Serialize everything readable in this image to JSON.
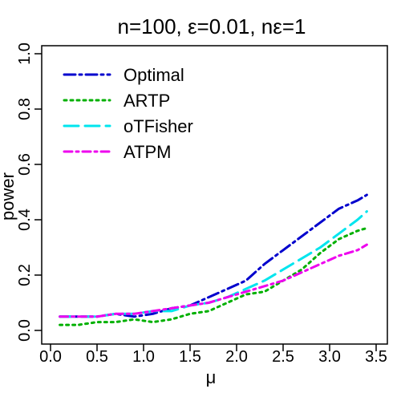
{
  "chart_data": {
    "type": "line",
    "title": "n=100, ε=0.01, nε=1",
    "xlabel": "μ",
    "ylabel": "power",
    "xlim": [
      0,
      3.5
    ],
    "ylim": [
      0,
      1.0
    ],
    "xticks": [
      "0.0",
      "0.5",
      "1.0",
      "1.5",
      "2.0",
      "2.5",
      "3.0",
      "3.5"
    ],
    "yticks": [
      "0.0",
      "0.2",
      "0.4",
      "0.6",
      "0.8",
      "1.0"
    ],
    "grid": false,
    "legend_position": "top-left",
    "series": [
      {
        "name": "Optimal",
        "color": "#0000CD",
        "dash": "dot-dash",
        "x": [
          0.1,
          0.3,
          0.5,
          0.7,
          0.9,
          1.1,
          1.3,
          1.5,
          1.7,
          1.9,
          2.1,
          2.3,
          2.5,
          2.7,
          2.9,
          3.1,
          3.3,
          3.4
        ],
        "y": [
          0.05,
          0.05,
          0.05,
          0.06,
          0.05,
          0.06,
          0.08,
          0.09,
          0.12,
          0.15,
          0.18,
          0.24,
          0.29,
          0.34,
          0.39,
          0.44,
          0.47,
          0.49
        ]
      },
      {
        "name": "ARTP",
        "color": "#00B000",
        "dash": "dotted",
        "x": [
          0.1,
          0.3,
          0.5,
          0.7,
          0.9,
          1.1,
          1.3,
          1.5,
          1.7,
          1.9,
          2.1,
          2.3,
          2.5,
          2.7,
          2.9,
          3.1,
          3.3,
          3.4
        ],
        "y": [
          0.02,
          0.02,
          0.03,
          0.03,
          0.04,
          0.03,
          0.04,
          0.06,
          0.07,
          0.1,
          0.13,
          0.14,
          0.18,
          0.22,
          0.28,
          0.33,
          0.36,
          0.37
        ]
      },
      {
        "name": "oTFisher",
        "color": "#00E5EE",
        "dash": "long-dash",
        "x": [
          0.1,
          0.3,
          0.5,
          0.7,
          0.9,
          1.1,
          1.3,
          1.5,
          1.7,
          1.9,
          2.1,
          2.3,
          2.5,
          2.7,
          2.9,
          3.1,
          3.3,
          3.4
        ],
        "y": [
          0.05,
          0.05,
          0.05,
          0.06,
          0.06,
          0.07,
          0.07,
          0.09,
          0.1,
          0.12,
          0.15,
          0.18,
          0.22,
          0.26,
          0.3,
          0.35,
          0.4,
          0.43
        ]
      },
      {
        "name": "ATPM",
        "color": "#EE00EE",
        "dash": "dash-dot",
        "x": [
          0.1,
          0.3,
          0.5,
          0.7,
          0.9,
          1.1,
          1.3,
          1.5,
          1.7,
          1.9,
          2.1,
          2.3,
          2.5,
          2.7,
          2.9,
          3.1,
          3.3,
          3.4
        ],
        "y": [
          0.05,
          0.05,
          0.05,
          0.06,
          0.06,
          0.07,
          0.08,
          0.09,
          0.1,
          0.12,
          0.14,
          0.16,
          0.18,
          0.21,
          0.24,
          0.27,
          0.29,
          0.31
        ]
      }
    ]
  }
}
